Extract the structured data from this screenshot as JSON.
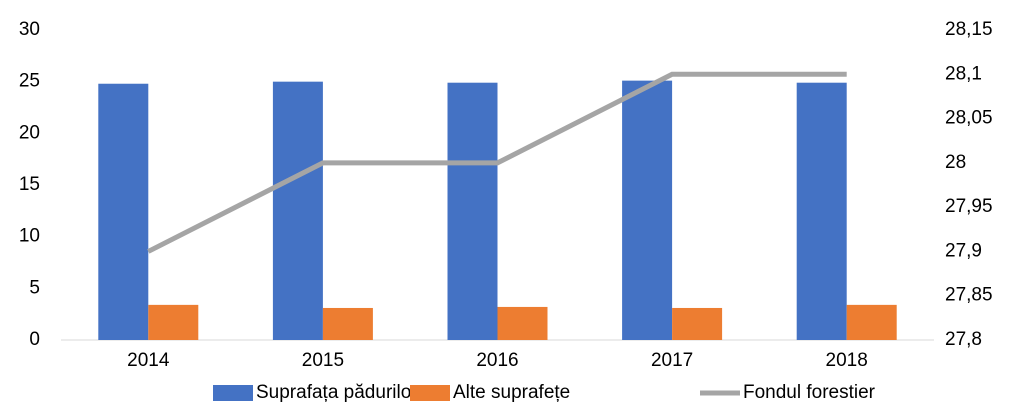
{
  "chart_data": {
    "type": "bar",
    "categories": [
      "2014",
      "2015",
      "2016",
      "2017",
      "2018"
    ],
    "series": [
      {
        "name": "Suprafața pădurilor",
        "color": "#4472c4",
        "type": "bar",
        "values": [
          24.8,
          25.0,
          24.9,
          25.1,
          24.9
        ]
      },
      {
        "name": "Alte suprafețe",
        "color": "#ed7d31",
        "type": "bar",
        "values": [
          3.4,
          3.1,
          3.2,
          3.1,
          3.4
        ]
      },
      {
        "name": "Fondul forestier",
        "color": "#a5a5a5",
        "type": "line",
        "axis": "y2",
        "values": [
          27.9,
          28.0,
          28.0,
          28.1,
          28.1
        ]
      }
    ],
    "ylim": [
      0,
      30
    ],
    "yticks": [
      0,
      5,
      10,
      15,
      20,
      25,
      30
    ],
    "y2lim": [
      27.8,
      28.15
    ],
    "y2ticks": [
      {
        "value": 27.8,
        "label": "27,8"
      },
      {
        "value": 27.85,
        "label": "27,85"
      },
      {
        "value": 27.9,
        "label": "27,9"
      },
      {
        "value": 27.95,
        "label": "27,95"
      },
      28,
      {
        "value": 28.05,
        "label": "28,05"
      },
      {
        "value": 28.1,
        "label": "28,1"
      },
      {
        "value": 28.15,
        "label": "28,15"
      }
    ],
    "legend": "bottom"
  }
}
